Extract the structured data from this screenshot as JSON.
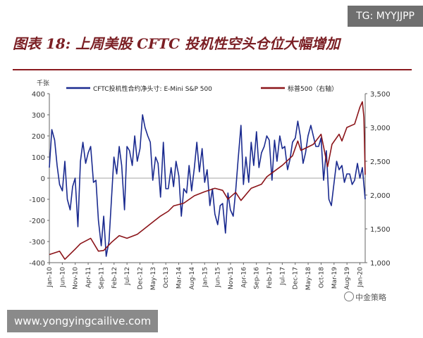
{
  "header": {
    "title": "图表 18: 上周美股 CFTC 投机性空头仓位大幅增加"
  },
  "watermarks": {
    "tg": "TG: MYYJJPP",
    "site": "www.yongyingcailive.com",
    "brand": "中金策略"
  },
  "colors": {
    "title": "#7b1f24",
    "rule": "#8b1a1f",
    "series_cftc": "#1a2a8f",
    "series_sp500": "#8b1419",
    "axis_text": "#333333"
  },
  "chart_data": {
    "type": "line",
    "y_unit_label": "千张",
    "legend": [
      "CFTC投机性合约净头寸: E-Mini S&P 500",
      "标普500（右轴）"
    ],
    "x_tick_labels": [
      "Jan-10",
      "Jun-10",
      "Nov-10",
      "Apr-11",
      "Sep-11",
      "Feb-12",
      "Jul-12",
      "Dec-12",
      "May-13",
      "Oct-13",
      "Mar-14",
      "Aug-14",
      "Jan-15",
      "Jun-15",
      "Nov-15",
      "Apr-16",
      "Sep-16",
      "Feb-17",
      "Jul-17",
      "Dec-17",
      "May-18",
      "Oct-18",
      "Mar-19",
      "Aug-19",
      "Jan-20"
    ],
    "y_left": {
      "ticks": [
        "400",
        "300",
        "200",
        "100",
        "0",
        "-100",
        "-200",
        "-300",
        "-400"
      ],
      "range": [
        -400,
        400
      ]
    },
    "y_right": {
      "ticks": [
        "3,500",
        "3,000",
        "2,500",
        "2,000",
        "1,500",
        "1,000"
      ],
      "range": [
        1000,
        3500
      ]
    },
    "series": [
      {
        "name": "CFTC投机性合约净头寸: E-Mini S&P 500",
        "axis": "left",
        "x": [
          2010.0,
          2010.08,
          2010.17,
          2010.25,
          2010.33,
          2010.42,
          2010.5,
          2010.58,
          2010.67,
          2010.75,
          2010.83,
          2010.92,
          2011.0,
          2011.08,
          2011.17,
          2011.25,
          2011.33,
          2011.42,
          2011.5,
          2011.58,
          2011.67,
          2011.75,
          2011.83,
          2011.92,
          2012.0,
          2012.08,
          2012.17,
          2012.25,
          2012.33,
          2012.42,
          2012.5,
          2012.58,
          2012.67,
          2012.75,
          2012.83,
          2012.92,
          2013.0,
          2013.08,
          2013.17,
          2013.25,
          2013.33,
          2013.42,
          2013.5,
          2013.58,
          2013.67,
          2013.75,
          2013.83,
          2013.92,
          2014.0,
          2014.08,
          2014.17,
          2014.25,
          2014.33,
          2014.42,
          2014.5,
          2014.58,
          2014.67,
          2014.75,
          2014.83,
          2014.92,
          2015.0,
          2015.08,
          2015.17,
          2015.25,
          2015.33,
          2015.42,
          2015.5,
          2015.58,
          2015.67,
          2015.75,
          2015.83,
          2015.92,
          2016.0,
          2016.08,
          2016.17,
          2016.25,
          2016.33,
          2016.42,
          2016.5,
          2016.58,
          2016.67,
          2016.75,
          2016.83,
          2016.92,
          2017.0,
          2017.08,
          2017.17,
          2017.25,
          2017.33,
          2017.42,
          2017.5,
          2017.58,
          2017.67,
          2017.75,
          2017.83,
          2017.92,
          2018.0,
          2018.08,
          2018.17,
          2018.25,
          2018.33,
          2018.42,
          2018.5,
          2018.58,
          2018.67,
          2018.75,
          2018.83,
          2018.92,
          2019.0,
          2019.08,
          2019.17,
          2019.25,
          2019.33,
          2019.42,
          2019.5,
          2019.58,
          2019.67,
          2019.75,
          2019.83,
          2019.92,
          2020.0,
          2020.08,
          2020.17
        ],
        "values": [
          50,
          230,
          180,
          60,
          -30,
          -60,
          80,
          -100,
          -150,
          -40,
          0,
          -230,
          80,
          170,
          70,
          120,
          150,
          -20,
          -10,
          -200,
          -320,
          -180,
          -370,
          -300,
          -100,
          100,
          20,
          150,
          60,
          -150,
          150,
          130,
          60,
          200,
          80,
          140,
          300,
          240,
          200,
          170,
          -10,
          100,
          70,
          -90,
          170,
          -50,
          -50,
          50,
          -40,
          80,
          10,
          -180,
          -50,
          -70,
          60,
          -60,
          50,
          170,
          30,
          140,
          -20,
          40,
          -130,
          -50,
          -170,
          -220,
          -130,
          -120,
          -260,
          -70,
          -150,
          -180,
          -60,
          90,
          250,
          -30,
          100,
          -20,
          170,
          60,
          220,
          50,
          120,
          150,
          200,
          180,
          -10,
          180,
          80,
          200,
          140,
          150,
          40,
          90,
          170,
          190,
          270,
          200,
          70,
          120,
          200,
          250,
          200,
          150,
          150,
          190,
          -10,
          130,
          -100,
          -130,
          -20,
          80,
          40,
          60,
          -20,
          20,
          20,
          -30,
          -10,
          70,
          0,
          50,
          -100
        ]
      },
      {
        "name": "标普500（右轴）",
        "axis": "right",
        "x": [
          2010.0,
          2010.33,
          2010.5,
          2010.83,
          2011.0,
          2011.33,
          2011.58,
          2011.75,
          2012.0,
          2012.25,
          2012.5,
          2012.83,
          2013.0,
          2013.33,
          2013.58,
          2013.83,
          2014.0,
          2014.33,
          2014.67,
          2015.0,
          2015.33,
          2015.58,
          2015.75,
          2016.0,
          2016.17,
          2016.5,
          2016.83,
          2017.0,
          2017.5,
          2017.83,
          2018.0,
          2018.1,
          2018.5,
          2018.75,
          2018.96,
          2019.1,
          2019.33,
          2019.42,
          2019.58,
          2019.83,
          2020.0,
          2020.08,
          2020.13,
          2020.17
        ],
        "values": [
          1120,
          1170,
          1050,
          1200,
          1280,
          1360,
          1170,
          1180,
          1300,
          1400,
          1360,
          1420,
          1480,
          1600,
          1690,
          1760,
          1840,
          1880,
          1990,
          2050,
          2100,
          2070,
          1940,
          2040,
          1920,
          2100,
          2160,
          2270,
          2440,
          2580,
          2800,
          2660,
          2750,
          2900,
          2420,
          2750,
          2900,
          2800,
          3000,
          3050,
          3300,
          3380,
          3150,
          2300
        ]
      }
    ],
    "grid": false,
    "legend_position": "top"
  }
}
